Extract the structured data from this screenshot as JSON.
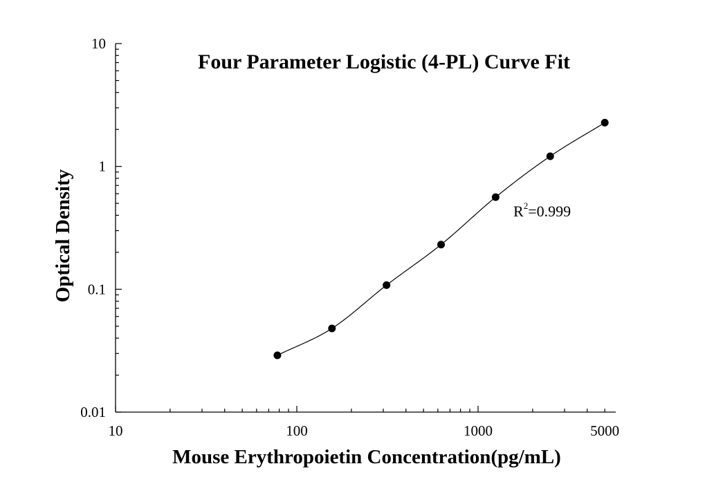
{
  "chart_data": {
    "type": "scatter",
    "title": "Four Parameter Logistic (4-PL) Curve Fit",
    "xlabel": "Mouse Erythropoietin Concentration(pg/mL)",
    "ylabel": "Optical Density",
    "xscale": "log",
    "yscale": "log",
    "xlim": [
      10,
      6000
    ],
    "ylim": [
      0.01,
      10
    ],
    "x_ticks": [
      {
        "value": 10,
        "label": "10"
      },
      {
        "value": 100,
        "label": "100"
      },
      {
        "value": 1000,
        "label": "1000"
      },
      {
        "value": 5000,
        "label": "5000"
      }
    ],
    "y_ticks": [
      {
        "value": 0.01,
        "label": "0.01"
      },
      {
        "value": 0.1,
        "label": "0.1"
      },
      {
        "value": 1,
        "label": "1"
      },
      {
        "value": 10,
        "label": "10"
      }
    ],
    "grid": false,
    "legend": "none",
    "series": [
      {
        "x": [
          78.125,
          156.25,
          312.5,
          625,
          1250,
          2500,
          5000
        ],
        "y": [
          0.029,
          0.048,
          0.108,
          0.231,
          0.562,
          1.21,
          2.27
        ]
      }
    ],
    "fit": "4-PL curve through points",
    "annotations": [
      {
        "text": "R",
        "superscript": "2",
        "suffix": "=0.999"
      }
    ]
  }
}
